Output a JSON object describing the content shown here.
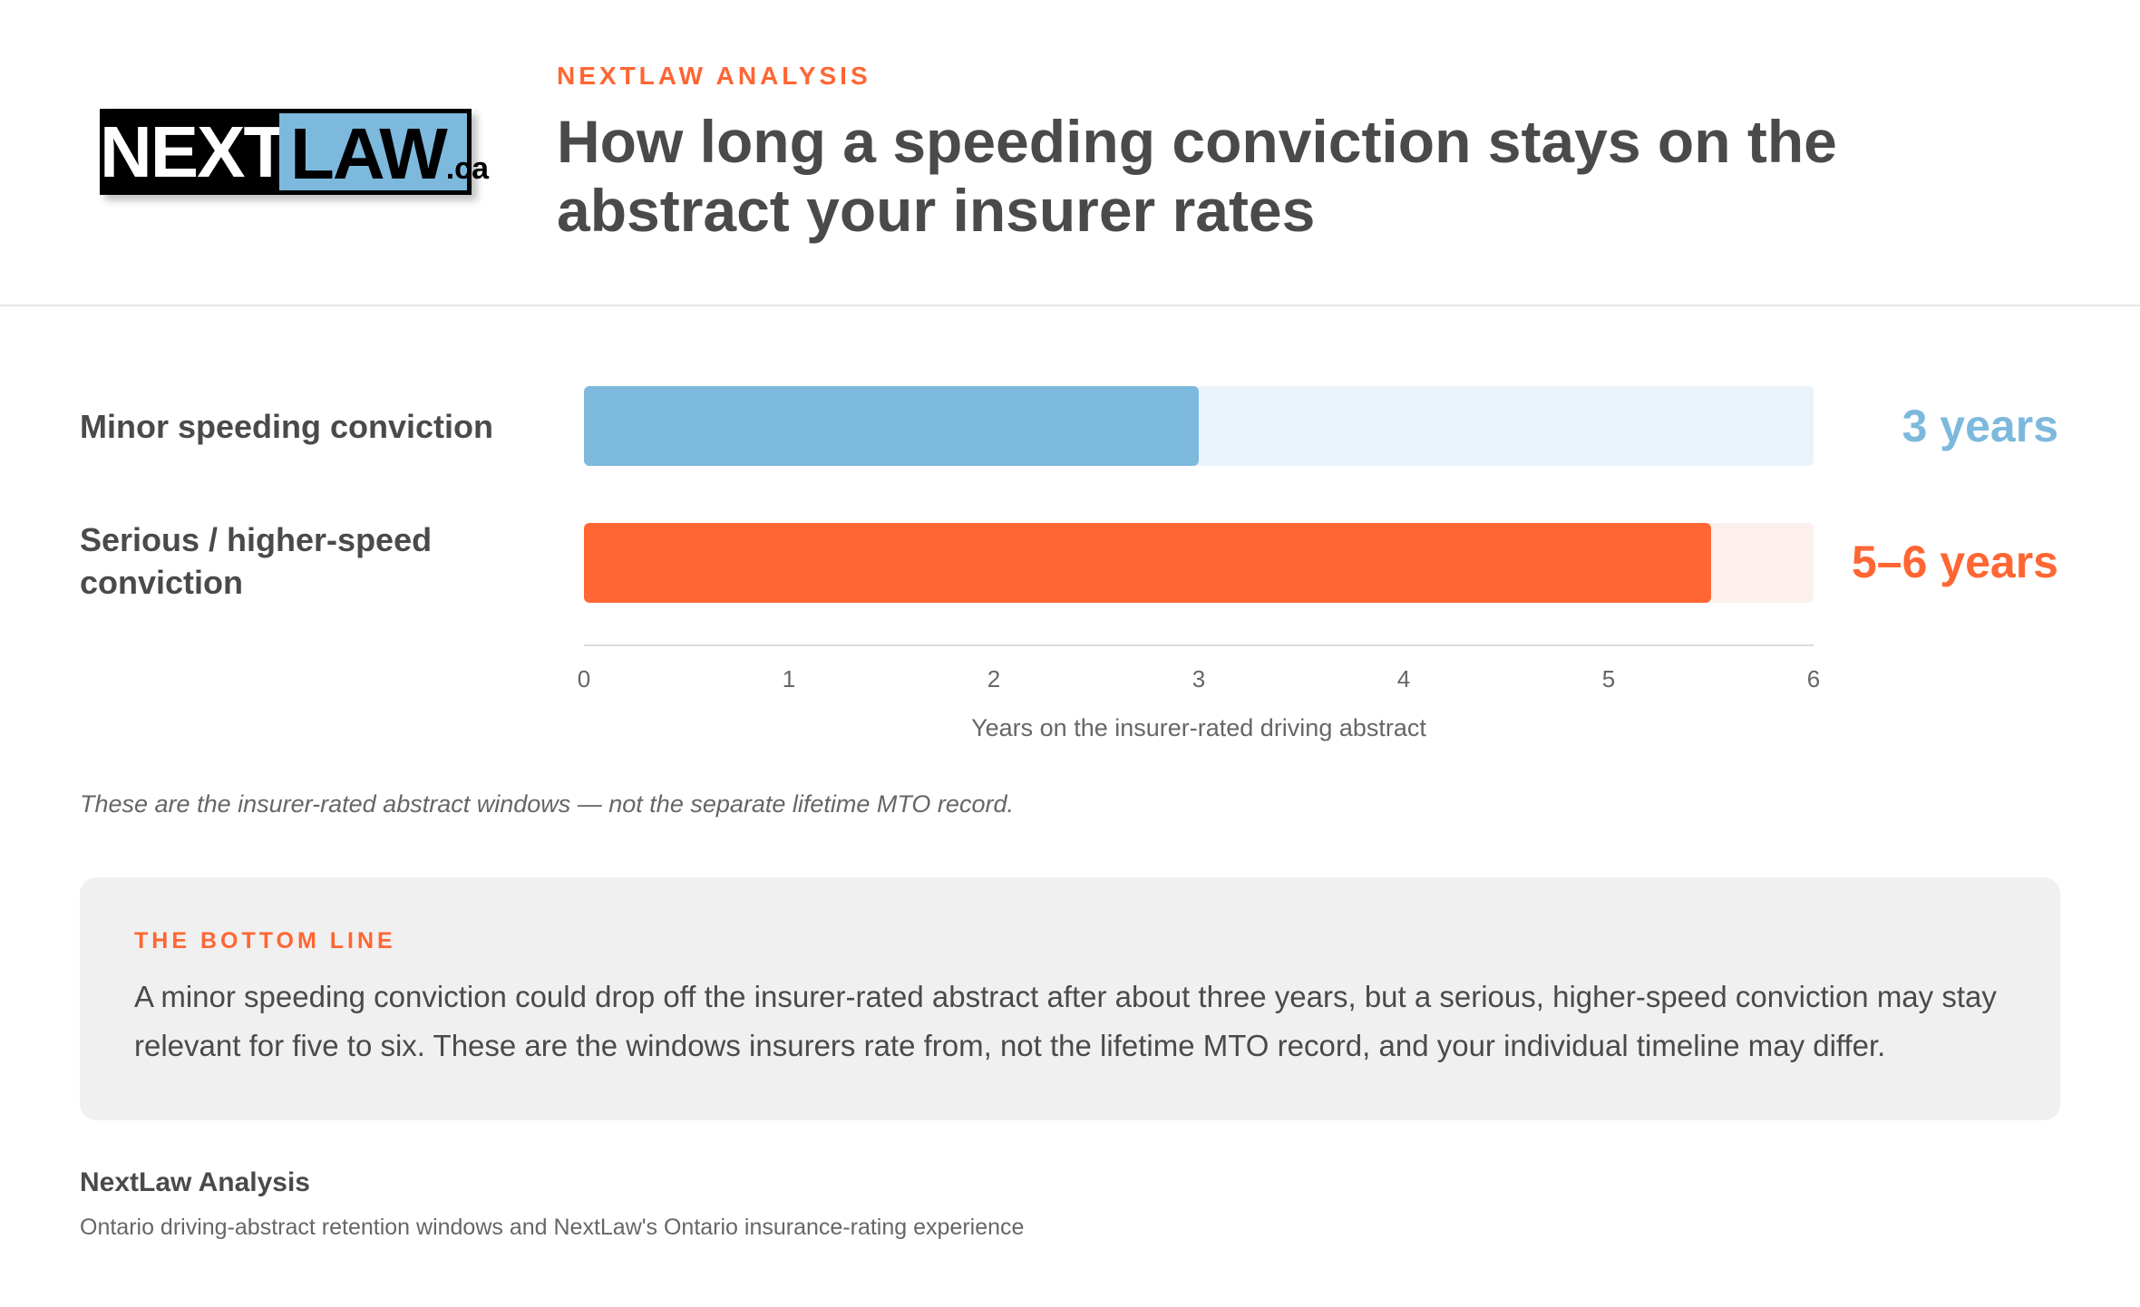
{
  "brand": {
    "logo_part1": "NEXT",
    "logo_part2": "LAW",
    "logo_tld": ".ca"
  },
  "header": {
    "kicker": "NEXTLAW ANALYSIS",
    "title": "How long a speeding conviction stays on the abstract your insurer rates"
  },
  "colors": {
    "accent": "#ff6633",
    "minor": "#7cb9dd",
    "minor_track": "#eaf2fa",
    "serious": "#ff6633",
    "serious_track": "#fdf0ec",
    "text": "#4a4a4a"
  },
  "chart_data": {
    "type": "bar",
    "orientation": "horizontal",
    "categories": [
      "Minor speeding conviction",
      "Serious / higher-speed conviction"
    ],
    "values": [
      3,
      5.5
    ],
    "value_labels": [
      "3 years",
      "5–6 years"
    ],
    "xlabel": "Years on the insurer-rated driving abstract",
    "xlim": [
      0,
      6
    ],
    "xticks": [
      0,
      1,
      2,
      3,
      4,
      5,
      6
    ],
    "grid": false
  },
  "note": "These are the insurer-rated abstract windows — not the separate lifetime MTO record.",
  "callout": {
    "kicker": "THE BOTTOM LINE",
    "body": "A minor speeding conviction could drop off the insurer-rated abstract after about three years, but a serious, higher-speed conviction may stay relevant for five to six. These are the windows insurers rate from, not the lifetime MTO record, and your individual timeline may differ."
  },
  "footer": {
    "title": "NextLaw Analysis",
    "source": "Ontario driving-abstract retention windows and NextLaw's Ontario insurance-rating experience"
  }
}
